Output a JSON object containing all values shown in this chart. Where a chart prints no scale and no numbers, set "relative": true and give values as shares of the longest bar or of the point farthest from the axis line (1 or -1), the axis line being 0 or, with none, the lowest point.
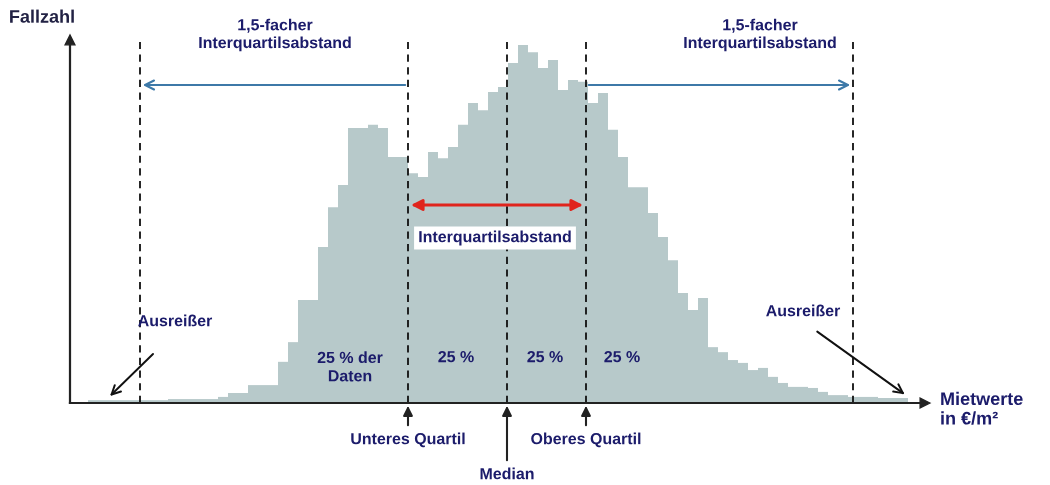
{
  "chart_data": {
    "type": "bar",
    "relative": true,
    "xlabel": "Mietwerte in €/m²",
    "ylabel": "Fallzahl",
    "categories": [
      null,
      null,
      null,
      null,
      null,
      null,
      null,
      null,
      null,
      null,
      null,
      null,
      null,
      null,
      null,
      null,
      null,
      null,
      null,
      null,
      null,
      null,
      null,
      null,
      null,
      null,
      null,
      null,
      null,
      null,
      null,
      null,
      null,
      null,
      null,
      null,
      null,
      null,
      null,
      null,
      null,
      null,
      null,
      null,
      null,
      null,
      null,
      null,
      null,
      null,
      null,
      null,
      null,
      null,
      null,
      null,
      null,
      null,
      null,
      null,
      null,
      null,
      null,
      null,
      null,
      null,
      null,
      null,
      null,
      null,
      null,
      null,
      null,
      null,
      null,
      null,
      null,
      null,
      null,
      null,
      null,
      null
    ],
    "values": [
      0.008,
      0.008,
      0.008,
      0.008,
      0.008,
      0.008,
      0.008,
      0.008,
      0.011,
      0.011,
      0.011,
      0.011,
      0.011,
      0.017,
      0.028,
      0.028,
      0.05,
      0.05,
      0.05,
      0.115,
      0.17,
      0.288,
      0.288,
      0.436,
      0.547,
      0.609,
      0.768,
      0.768,
      0.777,
      0.768,
      0.687,
      0.687,
      0.642,
      0.631,
      0.701,
      0.684,
      0.715,
      0.777,
      0.838,
      0.818,
      0.869,
      0.883,
      0.95,
      1,
      0.98,
      0.936,
      0.958,
      0.874,
      0.902,
      0.897,
      0.838,
      0.866,
      0.763,
      0.687,
      0.603,
      0.603,
      0.531,
      0.464,
      0.399,
      0.307,
      0.26,
      0.293,
      0.156,
      0.142,
      0.12,
      0.112,
      0.092,
      0.098,
      0.073,
      0.056,
      0.045,
      0.045,
      0.042,
      0.031,
      0.022,
      0.022,
      0.017,
      0.017,
      0.017,
      0.014,
      0.014,
      0.014
    ],
    "color": "#b7c9ca",
    "annotations": [
      "1,5-facher Interquartilsabstand",
      "1,5-facher Interquartilsabstand",
      "Interquartilsabstand",
      "Ausreißer",
      "Ausreißer",
      "25 % der Daten",
      "25 %",
      "25 %",
      "25 %",
      "Unteres Quartil",
      "Median",
      "Oberes Quartil"
    ]
  }
}
